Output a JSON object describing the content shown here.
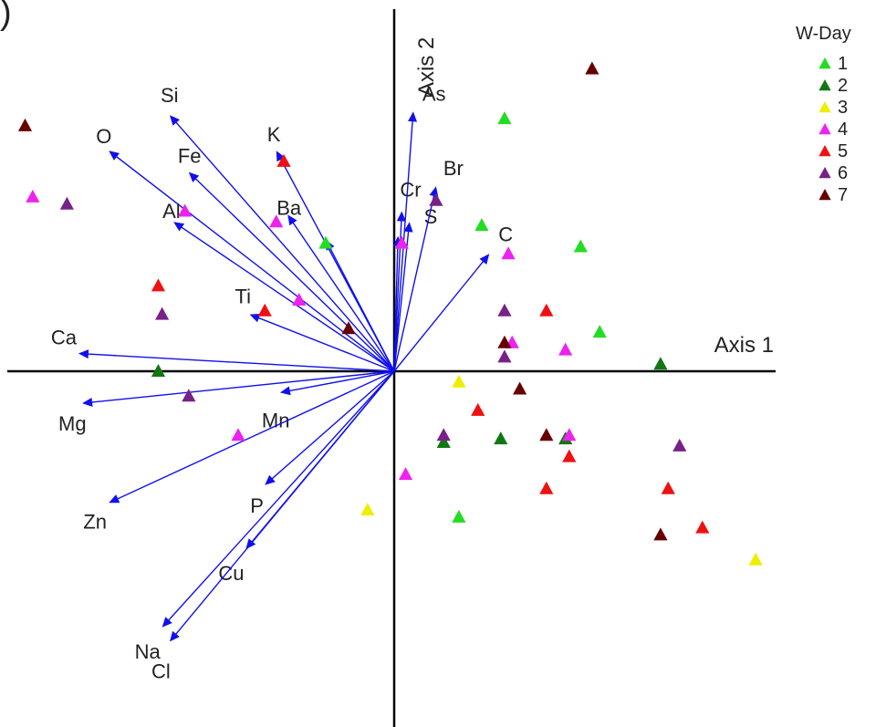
{
  "chart_data": {
    "type": "scatter",
    "title": "",
    "corner_text": ") ",
    "xlabel": "Axis 1",
    "ylabel": "Axis 2",
    "xlim": [
      -1.0,
      1.0
    ],
    "ylim": [
      -0.86,
      0.92
    ],
    "legend": {
      "title": "W-Day",
      "placement": "top-right",
      "entries": [
        {
          "label": "1",
          "color": "#22dd22"
        },
        {
          "label": "2",
          "color": "#117711"
        },
        {
          "label": "3",
          "color": "#eeee00"
        },
        {
          "label": "4",
          "color": "#ee22ee"
        },
        {
          "label": "5",
          "color": "#ee1111"
        },
        {
          "label": "6",
          "color": "#772288"
        },
        {
          "label": "7",
          "color": "#660000"
        }
      ]
    },
    "vector_color": "#1010ee",
    "vectors": [
      {
        "name": "Si",
        "x": -0.59,
        "y": 0.72
      },
      {
        "name": "O",
        "x": -0.75,
        "y": 0.62
      },
      {
        "name": "Fe",
        "x": -0.54,
        "y": 0.56
      },
      {
        "name": "K",
        "x": -0.31,
        "y": 0.62
      },
      {
        "name": "Al",
        "x": -0.58,
        "y": 0.42
      },
      {
        "name": "Ba",
        "x": -0.28,
        "y": 0.44
      },
      {
        "name": "",
        "x": -0.18,
        "y": 0.37
      },
      {
        "name": "Ti",
        "x": -0.38,
        "y": 0.16
      },
      {
        "name": "Ca",
        "x": -0.83,
        "y": 0.05
      },
      {
        "name": "Mg",
        "x": -0.82,
        "y": -0.09
      },
      {
        "name": "Mn",
        "x": -0.3,
        "y": -0.06
      },
      {
        "name": "Zn",
        "x": -0.75,
        "y": -0.37
      },
      {
        "name": "P",
        "x": -0.34,
        "y": -0.32
      },
      {
        "name": "Cu",
        "x": -0.39,
        "y": -0.5
      },
      {
        "name": "Na",
        "x": -0.61,
        "y": -0.72
      },
      {
        "name": "Cl",
        "x": -0.59,
        "y": -0.76
      },
      {
        "name": "Cr",
        "x": 0.02,
        "y": 0.45
      },
      {
        "name": "S",
        "x": 0.04,
        "y": 0.42
      },
      {
        "name": "As",
        "x": 0.05,
        "y": 0.73
      },
      {
        "name": "Br",
        "x": 0.11,
        "y": 0.52
      },
      {
        "name": "C",
        "x": 0.25,
        "y": 0.33
      },
      {
        "name": "",
        "x": 0.01,
        "y": 0.38
      }
    ],
    "series": [
      {
        "name": "1",
        "points": [
          [
            0.29,
            0.71
          ],
          [
            0.23,
            0.41
          ],
          [
            0.49,
            0.35
          ],
          [
            0.54,
            0.11
          ],
          [
            -0.18,
            0.36
          ],
          [
            0.17,
            -0.41
          ]
        ]
      },
      {
        "name": "2",
        "points": [
          [
            -0.62,
            0.0
          ],
          [
            0.7,
            0.02
          ],
          [
            0.13,
            -0.2
          ],
          [
            0.28,
            -0.19
          ],
          [
            0.45,
            -0.19
          ]
        ]
      },
      {
        "name": "3",
        "points": [
          [
            0.17,
            -0.03
          ],
          [
            -0.07,
            -0.39
          ],
          [
            0.95,
            -0.53
          ]
        ]
      },
      {
        "name": "4",
        "points": [
          [
            -0.95,
            0.49
          ],
          [
            -0.55,
            0.45
          ],
          [
            -0.31,
            0.42
          ],
          [
            0.02,
            0.36
          ],
          [
            0.3,
            0.33
          ],
          [
            -0.25,
            0.2
          ],
          [
            0.31,
            0.08
          ],
          [
            0.45,
            0.06
          ],
          [
            -0.41,
            -0.18
          ],
          [
            0.46,
            -0.18
          ],
          [
            0.03,
            -0.29
          ]
        ]
      },
      {
        "name": "5",
        "points": [
          [
            -0.29,
            0.59
          ],
          [
            -0.62,
            0.24
          ],
          [
            -0.34,
            0.17
          ],
          [
            0.4,
            0.17
          ],
          [
            0.22,
            -0.11
          ],
          [
            0.46,
            -0.24
          ],
          [
            0.4,
            -0.33
          ],
          [
            0.72,
            -0.33
          ],
          [
            0.81,
            -0.44
          ]
        ]
      },
      {
        "name": "6",
        "points": [
          [
            -0.86,
            0.47
          ],
          [
            0.11,
            0.48
          ],
          [
            0.29,
            0.17
          ],
          [
            -0.61,
            0.16
          ],
          [
            0.29,
            0.04
          ],
          [
            -0.54,
            -0.07
          ],
          [
            0.13,
            -0.18
          ],
          [
            0.75,
            -0.21
          ]
        ]
      },
      {
        "name": "7",
        "points": [
          [
            -0.97,
            0.69
          ],
          [
            0.52,
            0.85
          ],
          [
            -0.12,
            0.12
          ],
          [
            0.29,
            0.08
          ],
          [
            0.33,
            -0.05
          ],
          [
            0.4,
            -0.18
          ],
          [
            0.7,
            -0.46
          ]
        ]
      }
    ]
  }
}
